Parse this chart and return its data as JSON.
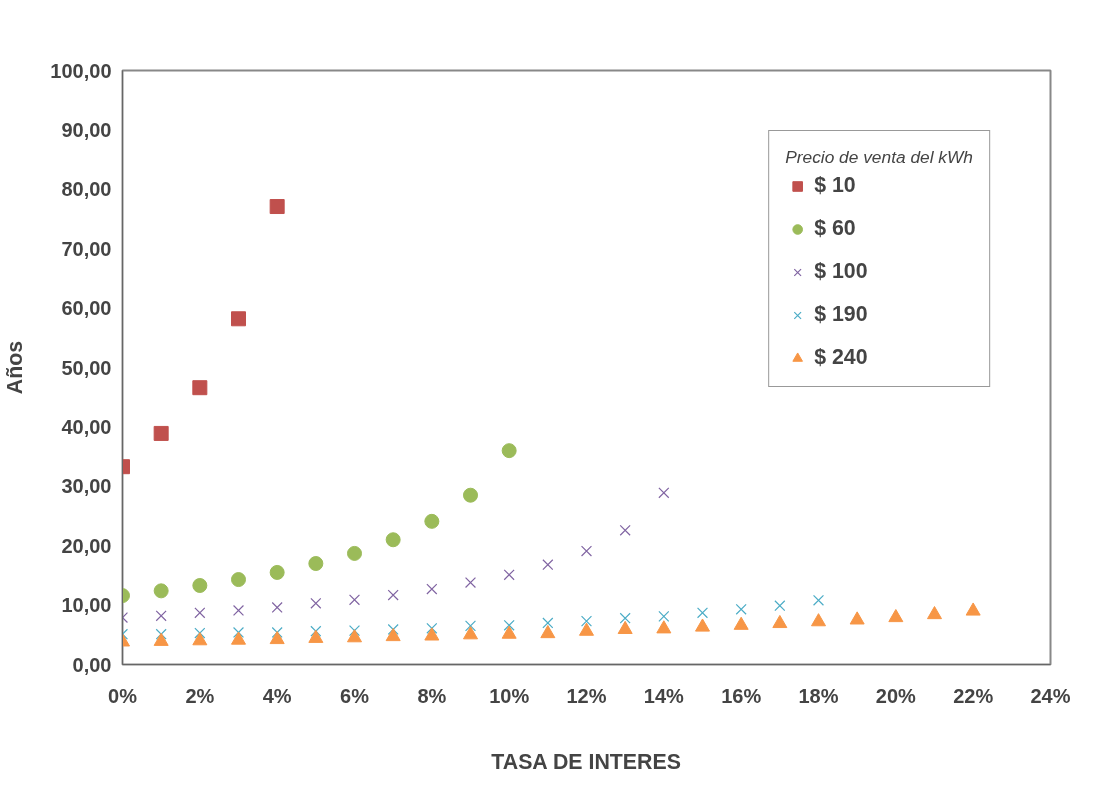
{
  "chart_data": {
    "type": "scatter",
    "xlabel": "TASA DE INTERES",
    "ylabel": "Años",
    "legend_title": "Precio de venta del kWh",
    "legend": "top right",
    "grid": false,
    "xlim": [
      0,
      24
    ],
    "ylim": [
      0,
      100
    ],
    "xticks": [
      {
        "value": 0,
        "label": "0%"
      },
      {
        "value": 2,
        "label": "2%"
      },
      {
        "value": 4,
        "label": "4%"
      },
      {
        "value": 6,
        "label": "6%"
      },
      {
        "value": 8,
        "label": "8%"
      },
      {
        "value": 10,
        "label": "10%"
      },
      {
        "value": 12,
        "label": "12%"
      },
      {
        "value": 14,
        "label": "14%"
      },
      {
        "value": 16,
        "label": "16%"
      },
      {
        "value": 18,
        "label": "18%"
      },
      {
        "value": 20,
        "label": "20%"
      },
      {
        "value": 22,
        "label": "22%"
      },
      {
        "value": 24,
        "label": "24%"
      }
    ],
    "yticks": [
      {
        "value": 0,
        "label": "0,00"
      },
      {
        "value": 10,
        "label": "10,00"
      },
      {
        "value": 20,
        "label": "20,00"
      },
      {
        "value": 30,
        "label": "30,00"
      },
      {
        "value": 40,
        "label": "40,00"
      },
      {
        "value": 50,
        "label": "50,00"
      },
      {
        "value": 60,
        "label": "60,00"
      },
      {
        "value": 70,
        "label": "70,00"
      },
      {
        "value": 80,
        "label": "80,00"
      },
      {
        "value": 90,
        "label": "90,00"
      },
      {
        "value": 100,
        "label": "100,00"
      }
    ],
    "series": [
      {
        "name": "$ 10",
        "color": "#c0504d",
        "marker": "square",
        "x": [
          0,
          1,
          2,
          3,
          4
        ],
        "values": [
          33.3,
          38.9,
          46.6,
          58.2,
          77.1
        ]
      },
      {
        "name": "$ 60",
        "color": "#9bbb59",
        "marker": "circle",
        "x": [
          0,
          1,
          2,
          3,
          4,
          5,
          6,
          7,
          8,
          9,
          10
        ],
        "values": [
          11.6,
          12.4,
          13.3,
          14.3,
          15.5,
          17.0,
          18.7,
          21.0,
          24.1,
          28.5,
          36.0
        ]
      },
      {
        "name": "$ 100",
        "color": "#8064a2",
        "marker": "cross",
        "x": [
          0,
          1,
          2,
          3,
          4,
          5,
          6,
          7,
          8,
          9,
          10,
          11,
          12,
          13,
          14
        ],
        "values": [
          7.9,
          8.2,
          8.7,
          9.1,
          9.6,
          10.3,
          10.9,
          11.7,
          12.7,
          13.8,
          15.1,
          16.8,
          19.1,
          22.6,
          28.9
        ]
      },
      {
        "name": "$ 190",
        "color": "#4bacc6",
        "marker": "cross",
        "x": [
          0,
          1,
          2,
          3,
          4,
          5,
          6,
          7,
          8,
          9,
          10,
          11,
          12,
          13,
          14,
          15,
          16,
          17,
          18
        ],
        "values": [
          5.1,
          5.1,
          5.3,
          5.4,
          5.4,
          5.6,
          5.7,
          5.9,
          6.1,
          6.5,
          6.6,
          7.0,
          7.3,
          7.8,
          8.1,
          8.7,
          9.3,
          9.9,
          10.8
        ]
      },
      {
        "name": "$ 240",
        "color": "#f79646",
        "marker": "triangle",
        "x": [
          0,
          1,
          2,
          3,
          4,
          5,
          6,
          7,
          8,
          9,
          10,
          11,
          12,
          13,
          14,
          15,
          16,
          17,
          18,
          19,
          20,
          21,
          22
        ],
        "values": [
          3.8,
          3.9,
          4.0,
          4.1,
          4.2,
          4.4,
          4.5,
          4.7,
          4.8,
          5.0,
          5.1,
          5.2,
          5.6,
          5.9,
          6.0,
          6.3,
          6.6,
          6.9,
          7.2,
          7.5,
          7.9,
          8.4,
          9.0
        ]
      }
    ]
  }
}
